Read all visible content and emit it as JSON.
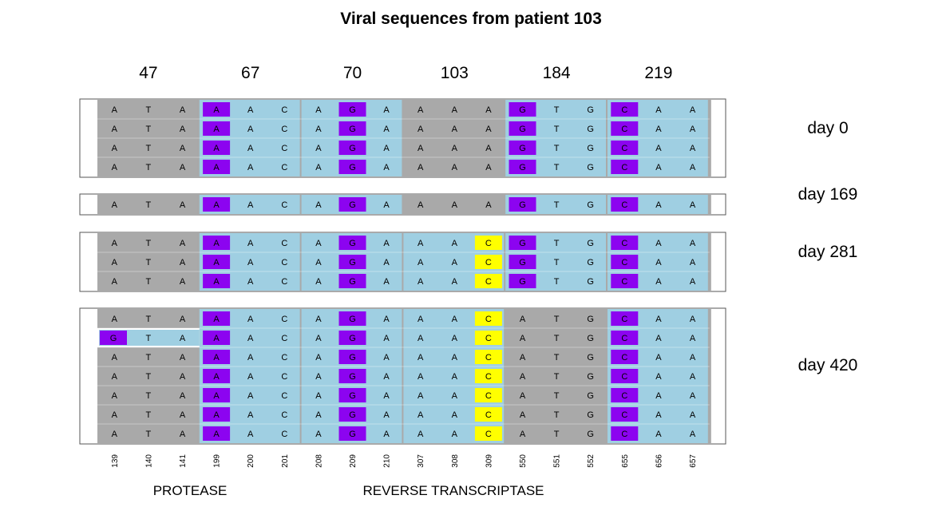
{
  "title": "Viral sequences from patient 103",
  "colors": {
    "grey": "#a9a9a9",
    "blue": "#9fcfe2",
    "purple": "#8c04f0",
    "yellow": "#ffff00",
    "frame": "#555555"
  },
  "codons": [
    "47",
    "67",
    "70",
    "103",
    "184",
    "219"
  ],
  "positions": [
    "139",
    "140",
    "141",
    "199",
    "200",
    "201",
    "208",
    "209",
    "210",
    "307",
    "308",
    "309",
    "550",
    "551",
    "552",
    "655",
    "656",
    "657"
  ],
  "regions": [
    {
      "label": "PROTEASE"
    },
    {
      "label": "REVERSE TRANSCRIPTASE"
    }
  ],
  "groups": [
    {
      "label": "day 0",
      "codon_bg": [
        "grey",
        "blue",
        "blue",
        "grey",
        "blue",
        "blue"
      ],
      "rows": [
        {
          "bases": [
            "A",
            "T",
            "A",
            "A",
            "A",
            "C",
            "A",
            "G",
            "A",
            "A",
            "A",
            "A",
            "G",
            "T",
            "G",
            "C",
            "A",
            "A"
          ],
          "purple": [
            3,
            7,
            12,
            15
          ],
          "yellow": []
        },
        {
          "bases": [
            "A",
            "T",
            "A",
            "A",
            "A",
            "C",
            "A",
            "G",
            "A",
            "A",
            "A",
            "A",
            "G",
            "T",
            "G",
            "C",
            "A",
            "A"
          ],
          "purple": [
            3,
            7,
            12,
            15
          ],
          "yellow": []
        },
        {
          "bases": [
            "A",
            "T",
            "A",
            "A",
            "A",
            "C",
            "A",
            "G",
            "A",
            "A",
            "A",
            "A",
            "G",
            "T",
            "G",
            "C",
            "A",
            "A"
          ],
          "purple": [
            3,
            7,
            12,
            15
          ],
          "yellow": []
        },
        {
          "bases": [
            "A",
            "T",
            "A",
            "A",
            "A",
            "C",
            "A",
            "G",
            "A",
            "A",
            "A",
            "A",
            "G",
            "T",
            "G",
            "C",
            "A",
            "A"
          ],
          "purple": [
            3,
            7,
            12,
            15
          ],
          "yellow": []
        }
      ]
    },
    {
      "label": "day 169",
      "codon_bg": [
        "grey",
        "blue",
        "blue",
        "grey",
        "blue",
        "blue"
      ],
      "rows": [
        {
          "bases": [
            "A",
            "T",
            "A",
            "A",
            "A",
            "C",
            "A",
            "G",
            "A",
            "A",
            "A",
            "A",
            "G",
            "T",
            "G",
            "C",
            "A",
            "A"
          ],
          "purple": [
            3,
            7,
            12,
            15
          ],
          "yellow": []
        }
      ]
    },
    {
      "label": "day 281",
      "codon_bg": [
        "grey",
        "blue",
        "blue",
        "blue",
        "blue",
        "blue"
      ],
      "rows": [
        {
          "bases": [
            "A",
            "T",
            "A",
            "A",
            "A",
            "C",
            "A",
            "G",
            "A",
            "A",
            "A",
            "C",
            "G",
            "T",
            "G",
            "C",
            "A",
            "A"
          ],
          "purple": [
            3,
            7,
            12,
            15
          ],
          "yellow": [
            11
          ]
        },
        {
          "bases": [
            "A",
            "T",
            "A",
            "A",
            "A",
            "C",
            "A",
            "G",
            "A",
            "A",
            "A",
            "C",
            "G",
            "T",
            "G",
            "C",
            "A",
            "A"
          ],
          "purple": [
            3,
            7,
            12,
            15
          ],
          "yellow": [
            11
          ]
        },
        {
          "bases": [
            "A",
            "T",
            "A",
            "A",
            "A",
            "C",
            "A",
            "G",
            "A",
            "A",
            "A",
            "C",
            "G",
            "T",
            "G",
            "C",
            "A",
            "A"
          ],
          "purple": [
            3,
            7,
            12,
            15
          ],
          "yellow": [
            11
          ]
        }
      ]
    },
    {
      "label": "day 420",
      "codon_bg": [
        "grey",
        "blue",
        "blue",
        "blue",
        "grey",
        "blue"
      ],
      "rows": [
        {
          "bases": [
            "A",
            "T",
            "A",
            "A",
            "A",
            "C",
            "A",
            "G",
            "A",
            "A",
            "A",
            "C",
            "A",
            "T",
            "G",
            "C",
            "A",
            "A"
          ],
          "purple": [
            3,
            7,
            15
          ],
          "yellow": [
            11
          ]
        },
        {
          "bases": [
            "G",
            "T",
            "A",
            "A",
            "A",
            "C",
            "A",
            "G",
            "A",
            "A",
            "A",
            "C",
            "A",
            "T",
            "G",
            "C",
            "A",
            "A"
          ],
          "purple": [
            0,
            3,
            7,
            15
          ],
          "yellow": [
            11
          ],
          "row_override": {
            "codon": 0,
            "bg": "blue"
          }
        },
        {
          "bases": [
            "A",
            "T",
            "A",
            "A",
            "A",
            "C",
            "A",
            "G",
            "A",
            "A",
            "A",
            "C",
            "A",
            "T",
            "G",
            "C",
            "A",
            "A"
          ],
          "purple": [
            3,
            7,
            15
          ],
          "yellow": [
            11
          ]
        },
        {
          "bases": [
            "A",
            "T",
            "A",
            "A",
            "A",
            "C",
            "A",
            "G",
            "A",
            "A",
            "A",
            "C",
            "A",
            "T",
            "G",
            "C",
            "A",
            "A"
          ],
          "purple": [
            3,
            7,
            15
          ],
          "yellow": [
            11
          ]
        },
        {
          "bases": [
            "A",
            "T",
            "A",
            "A",
            "A",
            "C",
            "A",
            "G",
            "A",
            "A",
            "A",
            "C",
            "A",
            "T",
            "G",
            "C",
            "A",
            "A"
          ],
          "purple": [
            3,
            7,
            15
          ],
          "yellow": [
            11
          ]
        },
        {
          "bases": [
            "A",
            "T",
            "A",
            "A",
            "A",
            "C",
            "A",
            "G",
            "A",
            "A",
            "A",
            "C",
            "A",
            "T",
            "G",
            "C",
            "A",
            "A"
          ],
          "purple": [
            3,
            7,
            15
          ],
          "yellow": [
            11
          ]
        },
        {
          "bases": [
            "A",
            "T",
            "A",
            "A",
            "A",
            "C",
            "A",
            "G",
            "A",
            "A",
            "A",
            "C",
            "A",
            "T",
            "G",
            "C",
            "A",
            "A"
          ],
          "purple": [
            3,
            7,
            15
          ],
          "yellow": [
            11
          ]
        }
      ]
    }
  ]
}
